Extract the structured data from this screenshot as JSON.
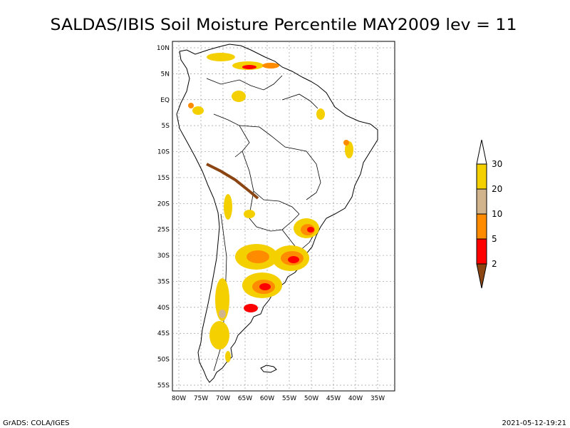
{
  "title": "SALDAS/IBIS Soil Moisture Percentile MAY2009 lev = 11",
  "footer_left": "GrADS: COLA/IGES",
  "footer_right": "2021-05-12-19:21",
  "map": {
    "lat_ticks": [
      "10N",
      "5N",
      "EQ",
      "5S",
      "10S",
      "15S",
      "20S",
      "25S",
      "30S",
      "35S",
      "40S",
      "45S",
      "50S",
      "55S"
    ],
    "lon_ticks": [
      "80W",
      "75W",
      "70W",
      "65W",
      "60W",
      "55W",
      "50W",
      "45W",
      "40W",
      "35W"
    ],
    "grid": true
  },
  "legend": {
    "labels": [
      "30",
      "20",
      "10",
      "5",
      "2"
    ],
    "colors": {
      "above_30": "#ffffff",
      "band_20_30": "#f5d000",
      "band_10_20": "#d2b48c",
      "band_5_10": "#ff8c00",
      "band_2_5": "#ff0000",
      "below_2": "#8b4513"
    }
  }
}
